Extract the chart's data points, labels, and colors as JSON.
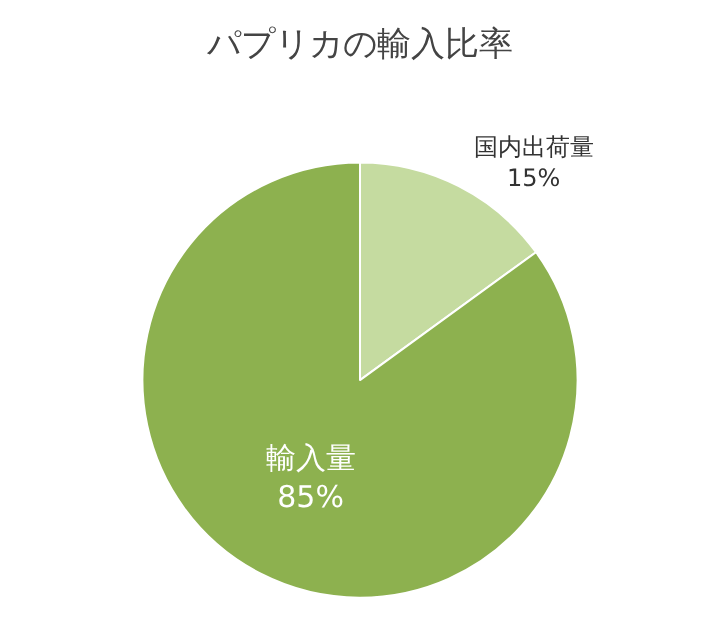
{
  "chart_data": {
    "type": "pie",
    "title": "パプリカの輸入比率",
    "categories": [
      "国内出荷量",
      "輸入量"
    ],
    "values": [
      15,
      85
    ],
    "value_labels": [
      "15%",
      "85%"
    ],
    "colors": [
      "#c5dba0",
      "#8db14f"
    ],
    "legend": false
  }
}
